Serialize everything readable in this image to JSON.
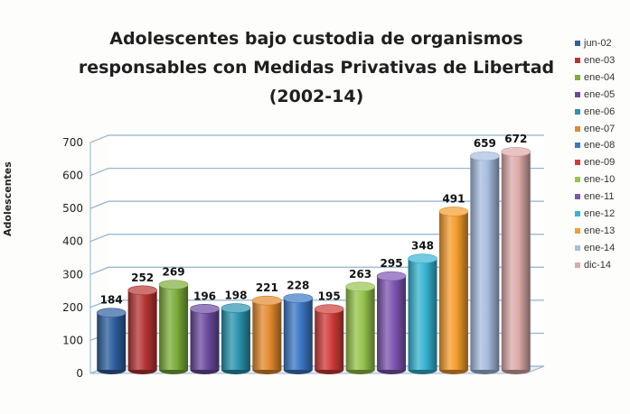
{
  "chart_data": {
    "type": "bar",
    "title_lines": [
      "Adolescentes bajo custodia de organismos",
      "responsables con Medidas Privativas de Libertad",
      "(2002-14)"
    ],
    "ylabel": "Adolescentes",
    "xlabel": "",
    "ylim": [
      0,
      700
    ],
    "yticks": [
      0,
      100,
      200,
      300,
      400,
      500,
      600,
      700
    ],
    "grid": true,
    "legend_position": "right",
    "categories": [
      "jun-02",
      "ene-03",
      "ene-04",
      "ene-05",
      "ene-06",
      "ene-07",
      "ene-08",
      "ene-09",
      "ene-10",
      "ene-11",
      "ene-12",
      "ene-13",
      "ene-14",
      "dic-14"
    ],
    "values": [
      184,
      252,
      269,
      196,
      198,
      221,
      228,
      195,
      263,
      295,
      348,
      491,
      659,
      672
    ],
    "legend_labels": [
      "jun-02",
      "ene-03",
      "ene-04",
      "ene-05",
      "ene-06",
      "ene-07",
      "ene-08",
      "ene-09",
      "ene-10",
      "ene-11",
      "ene-12",
      "ene-13",
      "ene-14",
      "dic-14"
    ],
    "colors": [
      "#2e5f9e",
      "#b73434",
      "#7cad3a",
      "#6b4a9e",
      "#2a93ad",
      "#e38a2e",
      "#3b78c4",
      "#cf3c38",
      "#96c44c",
      "#7e55b2",
      "#35b4d2",
      "#f49c2c",
      "#a6bde0",
      "#dcaaa9"
    ]
  }
}
